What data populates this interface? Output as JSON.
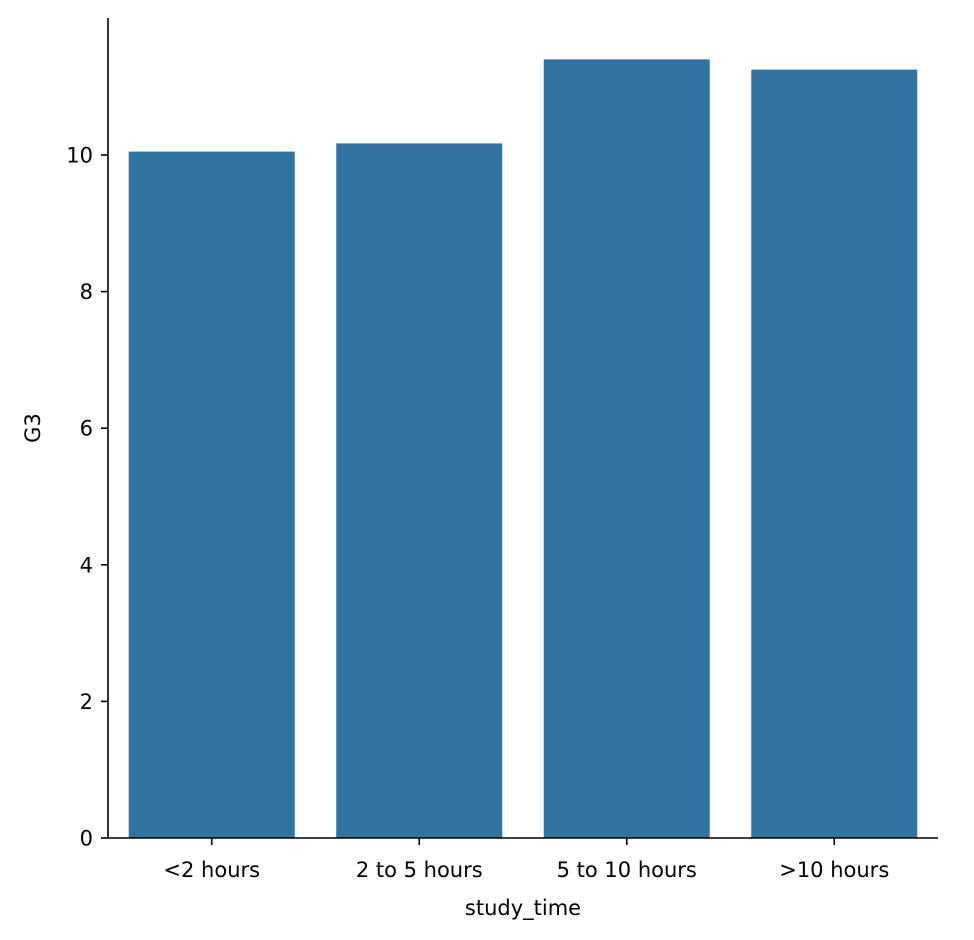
{
  "chart_data": {
    "type": "bar",
    "categories": [
      "<2 hours",
      "2 to 5 hours",
      "5 to 10 hours",
      ">10 hours"
    ],
    "values": [
      10.05,
      10.17,
      11.4,
      11.25
    ],
    "xlabel": "study_time",
    "ylabel": "G3",
    "ylim": [
      0,
      12
    ],
    "yticks": [
      0,
      2,
      4,
      6,
      8,
      10
    ],
    "grid": false,
    "bar_color": "#3274a1"
  }
}
